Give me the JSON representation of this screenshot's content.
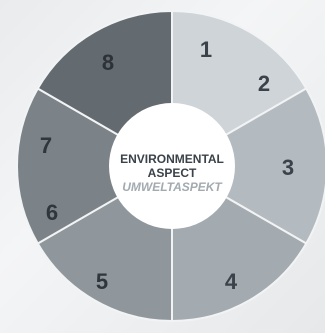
{
  "diagram": {
    "center": {
      "line1": "ENVIRONMENTAL",
      "line2": "ASPECT",
      "line3": "UMWELTASPEKT"
    },
    "segments": [
      {
        "labels": [
          "1",
          "2"
        ],
        "color": "#cfd4d8",
        "text_color": "#3b4249"
      },
      {
        "labels": [
          "3"
        ],
        "color": "#b4bbc0",
        "text_color": "#3b4249"
      },
      {
        "labels": [
          "4"
        ],
        "color": "#a3aab0",
        "text_color": "#3b4249"
      },
      {
        "labels": [
          "5"
        ],
        "color": "#8f979d",
        "text_color": "#2f363c"
      },
      {
        "labels": [
          "6",
          "7"
        ],
        "color": "#7b8389",
        "text_color": "#2f363c"
      },
      {
        "labels": [
          "8"
        ],
        "color": "#636b71",
        "text_color": "#2c3237"
      }
    ],
    "colors": {
      "center_fill": "#ffffff",
      "center_title": "#3b4249",
      "center_subtitle": "#a3aab0",
      "divider": "#f2f3f4"
    }
  }
}
